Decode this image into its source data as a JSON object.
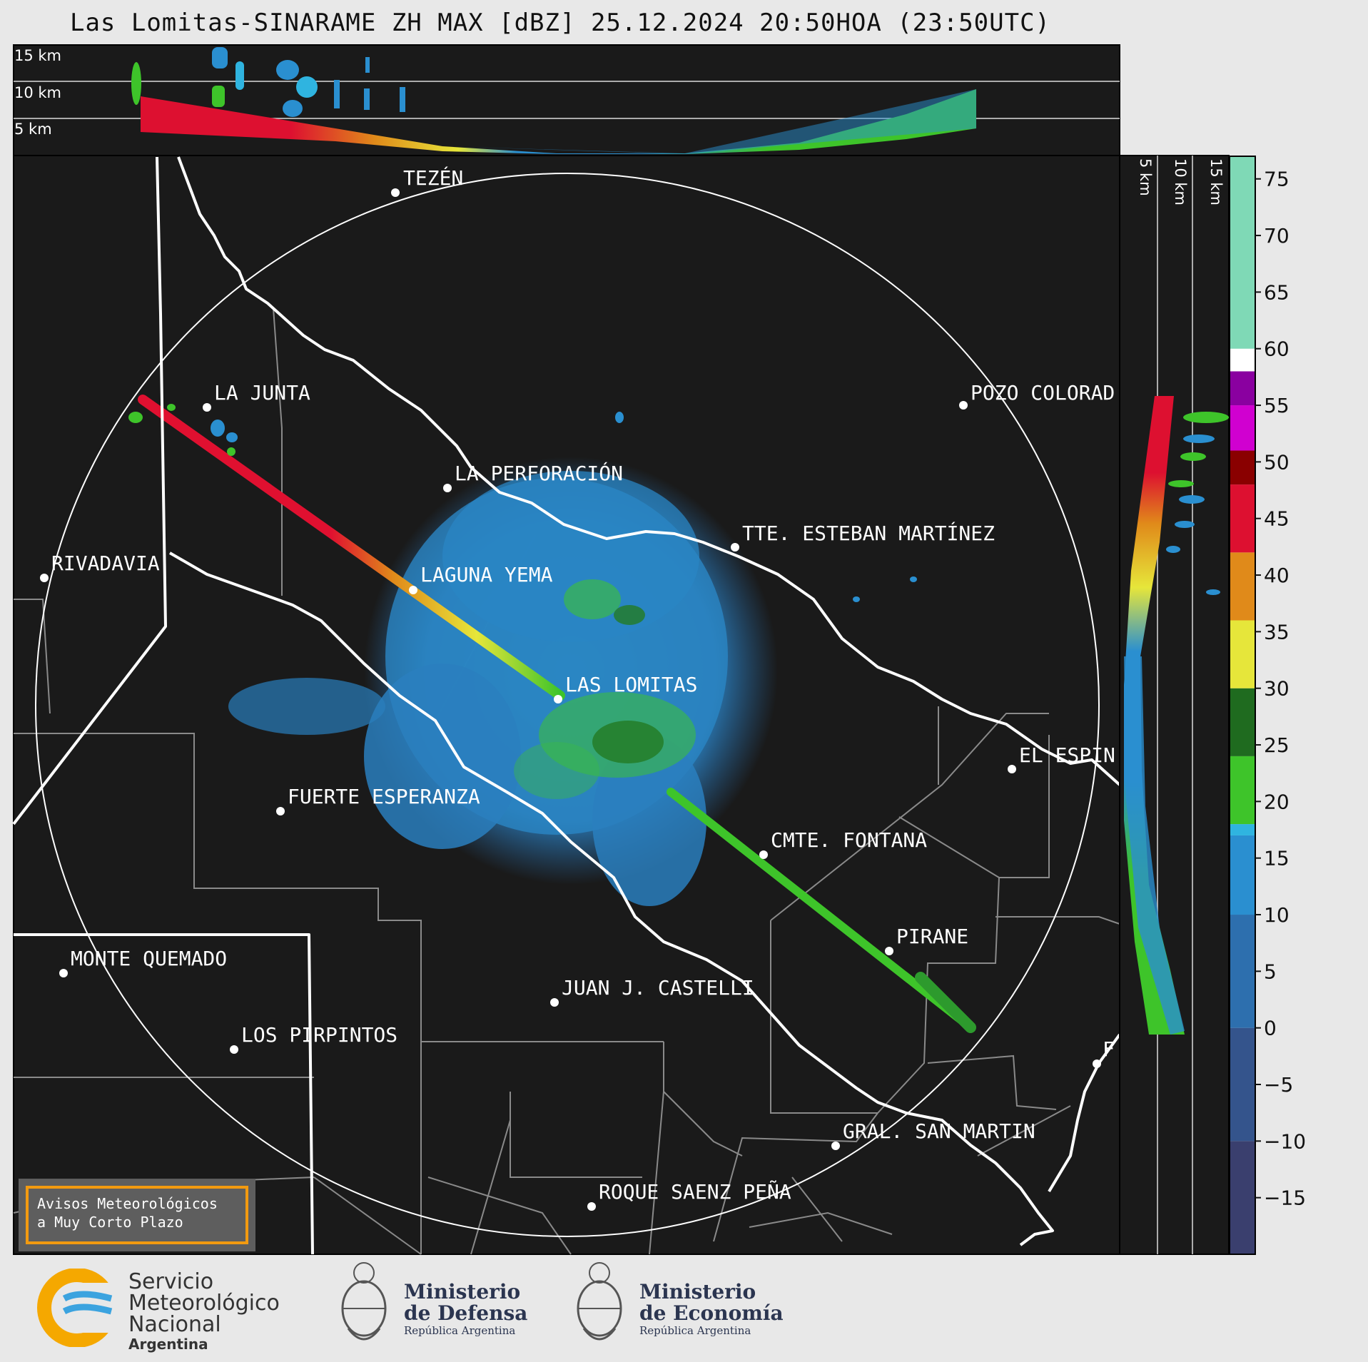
{
  "title": "Las Lomitas-SINARAME ZH MAX [dBZ] 25.12.2024 20:50HOA (23:50UTC)",
  "height_labels_top": [
    "15 km",
    "10 km",
    "5 km"
  ],
  "height_labels_side": [
    "5 km",
    "10 km",
    "15 km"
  ],
  "places": [
    {
      "name": "TEZÉN"
    },
    {
      "name": "LA JUNTA"
    },
    {
      "name": "POZO COLORAD"
    },
    {
      "name": "LA PERFORACIÓN"
    },
    {
      "name": "TTE. ESTEBAN MARTÍNEZ"
    },
    {
      "name": "RIVADAVIA"
    },
    {
      "name": "LAGUNA YEMA"
    },
    {
      "name": "LAS LOMITAS"
    },
    {
      "name": "EL ESPIN"
    },
    {
      "name": "FUERTE ESPERANZA"
    },
    {
      "name": "CMTE. FONTANA"
    },
    {
      "name": "PIRANE"
    },
    {
      "name": "MONTE QUEMADO"
    },
    {
      "name": "JUAN J. CASTELLI"
    },
    {
      "name": "LOS PIRPINTOS"
    },
    {
      "name": "F"
    },
    {
      "name": "GRAL. SAN MARTIN"
    },
    {
      "name": "ROQUE SAENZ PEÑA"
    }
  ],
  "colorbar": {
    "unit": "dBZ",
    "ticks": [
      "75",
      "70",
      "65",
      "60",
      "55",
      "50",
      "45",
      "40",
      "35",
      "30",
      "25",
      "20",
      "15",
      "10",
      "5",
      "0",
      "−5",
      "−10",
      "−15"
    ],
    "range": [
      -20,
      77
    ],
    "colors": {
      "low": "#3a3f6e",
      "blue": "#2a8fd0",
      "cyan": "#2fb4e0",
      "green": "#3ec42a",
      "dark_green": "#1f6b1f",
      "yellow": "#e6e63a",
      "orange": "#e08a1a",
      "red": "#dd1030",
      "dark_red": "#8a0000",
      "magenta": "#d000d0",
      "purple": "#8a00a0",
      "white": "#ffffff",
      "mint": "#7fd9b6"
    }
  },
  "avisos": {
    "line1": "Avisos Meteorológicos",
    "line2": "a Muy Corto Plazo"
  },
  "logos": {
    "smn": {
      "line1": "Servicio",
      "line2": "Meteorológico",
      "line3": "Nacional",
      "sub": "Argentina"
    },
    "defensa": {
      "line1": "Ministerio",
      "line2": "de Defensa",
      "sub": "República Argentina"
    },
    "economia": {
      "line1": "Ministerio",
      "line2": "de Economía",
      "sub": "República Argentina"
    }
  }
}
